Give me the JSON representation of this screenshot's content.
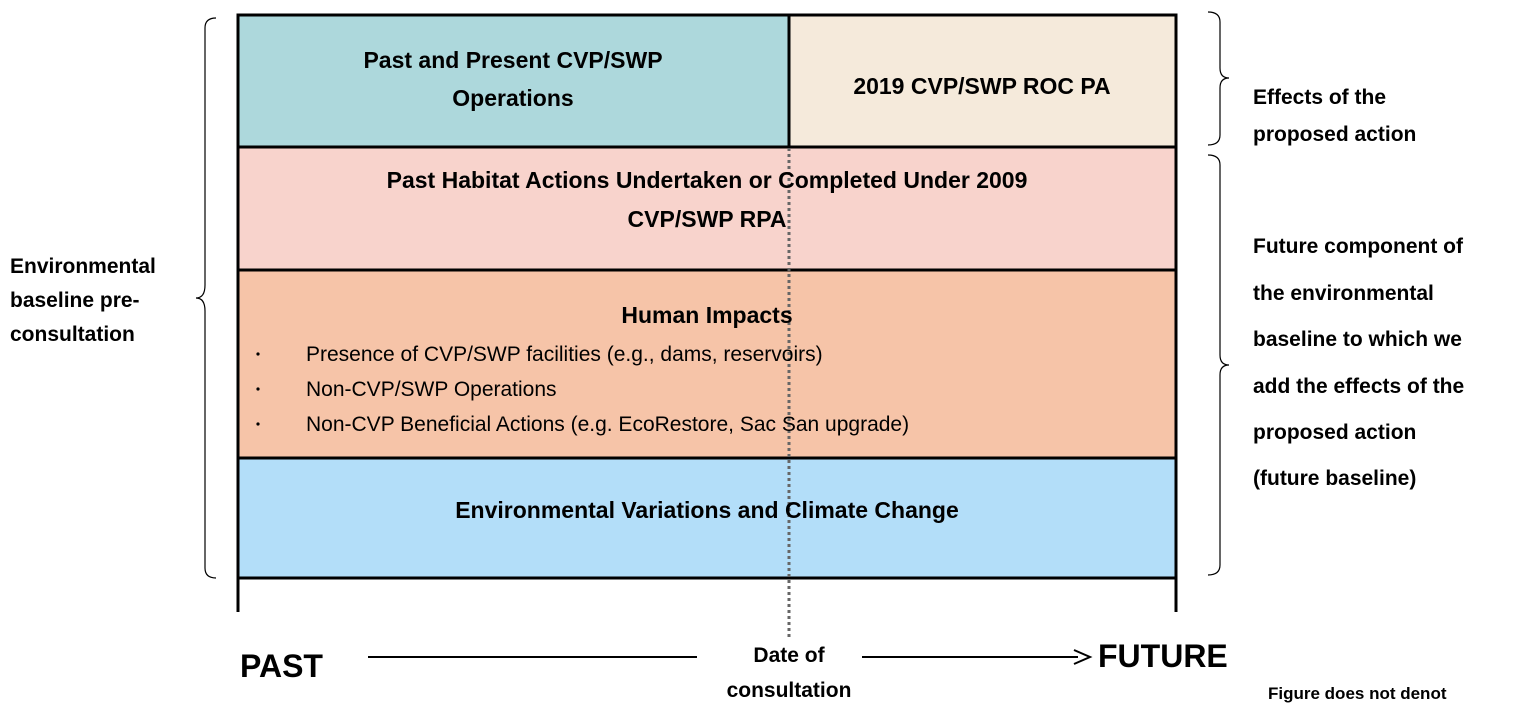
{
  "boxes": {
    "past_present_ops": [
      "Past and Present CVP/SWP",
      "Operations"
    ],
    "proposed_action": "2019 CVP/SWP ROC PA",
    "habitat_actions": [
      "Past Habitat Actions Undertaken or Completed Under 2009",
      "CVP/SWP RPA"
    ],
    "human_impacts": {
      "title": "Human Impacts",
      "items": [
        "Presence of CVP/SWP facilities (e.g., dams, reservoirs)",
        "Non-CVP/SWP Operations",
        "Non-CVP Beneficial Actions (e.g. EcoRestore, Sac San upgrade)"
      ]
    },
    "environmental": "Environmental Variations and Climate Change"
  },
  "labels": {
    "left": [
      "Environmental",
      "baseline pre-",
      "consultation"
    ],
    "right_top": [
      "Effects of the",
      "proposed action"
    ],
    "right_bottom": [
      "Future component of",
      "the environmental",
      "baseline to which we",
      "add the effects of the",
      "proposed action",
      "(future baseline)"
    ]
  },
  "timeline": {
    "past": "PAST",
    "date": [
      "Date of",
      "consultation"
    ],
    "future": "FUTURE"
  },
  "note": "Figure does not denot"
}
